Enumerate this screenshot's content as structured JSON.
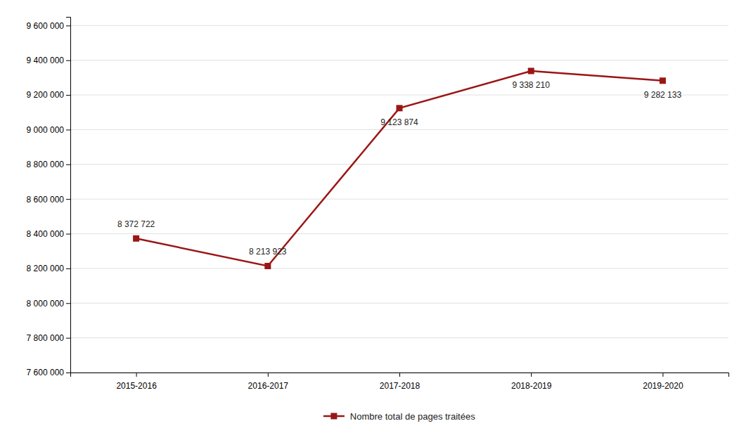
{
  "chart_data": {
    "type": "line",
    "categories": [
      "2015-2016",
      "2016-2017",
      "2017-2018",
      "2018-2019",
      "2019-2020"
    ],
    "series": [
      {
        "name": "Nombre total de pages traitées",
        "color": "#9B1515",
        "marker": "square",
        "values": [
          8372722,
          8213923,
          9123874,
          9338210,
          9282133
        ],
        "value_labels": [
          "8 372 722",
          "8 213 923",
          "9 123 874",
          "9 338 210",
          "9 282 133"
        ]
      }
    ],
    "ylim": [
      7600000,
      9650000
    ],
    "yticks": [
      {
        "value": 7600000,
        "label": "7 600 000"
      },
      {
        "value": 7800000,
        "label": "7 800 000"
      },
      {
        "value": 8000000,
        "label": "8 000 000"
      },
      {
        "value": 8200000,
        "label": "8 200 000"
      },
      {
        "value": 8400000,
        "label": "8 400 000"
      },
      {
        "value": 8600000,
        "label": "8 600 000"
      },
      {
        "value": 8800000,
        "label": "8 800 000"
      },
      {
        "value": 9000000,
        "label": "9 000 000"
      },
      {
        "value": 9200000,
        "label": "9 200 000"
      },
      {
        "value": 9400000,
        "label": "9 400 000"
      },
      {
        "value": 9600000,
        "label": "9 600 000"
      }
    ],
    "grid": true,
    "data_labels": true,
    "legend": "bottom"
  }
}
